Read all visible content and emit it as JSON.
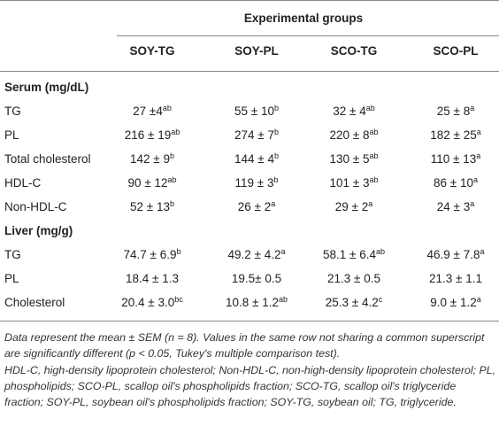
{
  "table": {
    "group_header": "Experimental groups",
    "columns": [
      "SOY-TG",
      "SOY-PL",
      "SCO-TG",
      "SCO-PL"
    ],
    "sections": [
      {
        "title": "Serum (mg/dL)",
        "rows": [
          {
            "label": "TG",
            "cells": [
              {
                "value": "27 ±4",
                "sup": "ab"
              },
              {
                "value": "55 ± 10",
                "sup": "b"
              },
              {
                "value": "32 ± 4",
                "sup": "ab"
              },
              {
                "value": "25 ± 8",
                "sup": "a"
              }
            ]
          },
          {
            "label": "PL",
            "cells": [
              {
                "value": "216 ± 19",
                "sup": "ab"
              },
              {
                "value": "274 ± 7",
                "sup": "b"
              },
              {
                "value": "220 ± 8",
                "sup": "ab"
              },
              {
                "value": "182 ± 25",
                "sup": "a"
              }
            ]
          },
          {
            "label": "Total cholesterol",
            "cells": [
              {
                "value": "142 ± 9",
                "sup": "b"
              },
              {
                "value": "144 ± 4",
                "sup": "b"
              },
              {
                "value": "130 ± 5",
                "sup": "ab"
              },
              {
                "value": "110 ± 13",
                "sup": "a"
              }
            ]
          },
          {
            "label": "HDL-C",
            "cells": [
              {
                "value": "90 ± 12",
                "sup": "ab"
              },
              {
                "value": "119 ± 3",
                "sup": "b"
              },
              {
                "value": "101 ± 3",
                "sup": "ab"
              },
              {
                "value": "86 ± 10",
                "sup": "a"
              }
            ]
          },
          {
            "label": "Non-HDL-C",
            "cells": [
              {
                "value": "52 ± 13",
                "sup": "b"
              },
              {
                "value": "26 ± 2",
                "sup": "a"
              },
              {
                "value": "29 ± 2",
                "sup": "a"
              },
              {
                "value": "24 ± 3",
                "sup": "a"
              }
            ]
          }
        ]
      },
      {
        "title": "Liver (mg/g)",
        "rows": [
          {
            "label": "TG",
            "cells": [
              {
                "value": "74.7 ± 6.9",
                "sup": "b"
              },
              {
                "value": "49.2 ± 4.2",
                "sup": "a"
              },
              {
                "value": "58.1 ± 6.4",
                "sup": "ab"
              },
              {
                "value": "46.9 ± 7.8",
                "sup": "a"
              }
            ]
          },
          {
            "label": "PL",
            "cells": [
              {
                "value": "18.4 ± 1.3"
              },
              {
                "value": "19.5± 0.5"
              },
              {
                "value": "21.3 ± 0.5"
              },
              {
                "value": "21.3 ± 1.1"
              }
            ]
          },
          {
            "label": "Cholesterol",
            "cells": [
              {
                "value": "20.4 ± 3.0",
                "sup": "bc"
              },
              {
                "value": "10.8 ± 1.2",
                "sup": "ab"
              },
              {
                "value": "25.3 ± 4.2",
                "sup": "c"
              },
              {
                "value": "9.0 ± 1.2",
                "sup": "a"
              }
            ]
          }
        ]
      }
    ]
  },
  "footnotes": [
    "Data represent the mean ± SEM (n = 8). Values in the same row not sharing a common superscript are significantly different (p < 0.05, Tukey's multiple comparison test).",
    "HDL-C, high-density lipoprotein cholesterol; Non-HDL-C, non-high-density lipoprotein cholesterol; PL, phospholipids; SCO-PL, scallop oil's phospholipids fraction; SCO-TG, scallop oil's triglyceride fraction; SOY-PL, soybean oil's phospholipids fraction; SOY-TG, soybean oil; TG, triglyceride."
  ]
}
